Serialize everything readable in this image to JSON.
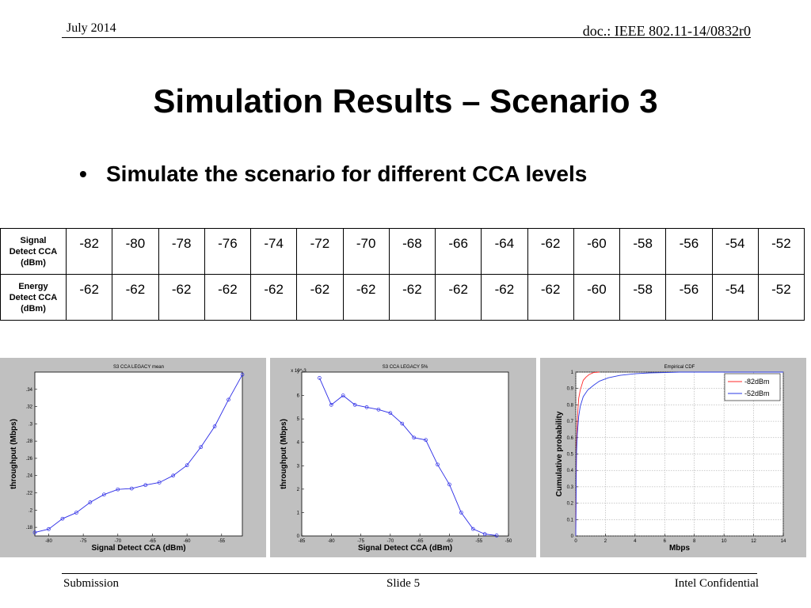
{
  "header": {
    "date": "July 2014",
    "doc_id": "doc.: IEEE 802.11-14/0832r0"
  },
  "slide": {
    "title": "Simulation Results – Scenario 3",
    "bullet": "Simulate the scenario for different CCA levels"
  },
  "table": {
    "rows": [
      {
        "label": [
          "Signal",
          "Detect CCA",
          "(dBm)"
        ],
        "values": [
          "-82",
          "-80",
          "-78",
          "-76",
          "-74",
          "-72",
          "-70",
          "-68",
          "-66",
          "-64",
          "-62",
          "-60",
          "-58",
          "-56",
          "-54",
          "-52"
        ]
      },
      {
        "label": [
          "Energy",
          "Detect CCA",
          "(dBm)"
        ],
        "values": [
          "-62",
          "-62",
          "-62",
          "-62",
          "-62",
          "-62",
          "-62",
          "-62",
          "-62",
          "-62",
          "-62",
          "-60",
          "-58",
          "-56",
          "-54",
          "-52"
        ]
      }
    ]
  },
  "chart_data": [
    {
      "type": "line",
      "title": "S3 CCA LEGACY mean",
      "xlabel": "Signal Detect CCA (dBm)",
      "ylabel": "throughput (Mbps)",
      "xlim": [
        -82,
        -52
      ],
      "ylim": [
        0.17,
        0.36
      ],
      "xticks": [
        -80,
        -75,
        -70,
        -65,
        -60,
        -55
      ],
      "yticks": [
        0.18,
        0.2,
        0.22,
        0.24,
        0.26,
        0.28,
        0.3,
        0.32,
        0.34
      ],
      "color": "#2a2ae6",
      "x": [
        -82,
        -80,
        -78,
        -76,
        -74,
        -72,
        -70,
        -68,
        -66,
        -64,
        -62,
        -60,
        -58,
        -56,
        -54,
        -52
      ],
      "y": [
        0.174,
        0.178,
        0.19,
        0.197,
        0.209,
        0.218,
        0.224,
        0.225,
        0.229,
        0.232,
        0.24,
        0.252,
        0.273,
        0.297,
        0.328,
        0.357
      ]
    },
    {
      "type": "line",
      "title": "S3 CCA LEGACY 5%",
      "xlabel": "Signal Detect CCA (dBm)",
      "ylabel": "throughput (Mbps)",
      "exponent": "x 10^-3",
      "xlim": [
        -85,
        -50
      ],
      "ylim": [
        0,
        7
      ],
      "xticks": [
        -85,
        -80,
        -75,
        -70,
        -65,
        -60,
        -55,
        -50
      ],
      "yticks": [
        0,
        1,
        2,
        3,
        4,
        5,
        6,
        7
      ],
      "color": "#2a2ae6",
      "x": [
        -82,
        -80,
        -78,
        -76,
        -74,
        -72,
        -70,
        -68,
        -66,
        -64,
        -62,
        -60,
        -58,
        -56,
        -54,
        -52
      ],
      "y": [
        6.75,
        5.6,
        6.0,
        5.6,
        5.5,
        5.4,
        5.25,
        4.8,
        4.2,
        4.1,
        3.05,
        2.2,
        1.0,
        0.3,
        0.08,
        0.02
      ]
    },
    {
      "type": "line",
      "title": "Empirical CDF",
      "xlabel": "Mbps",
      "ylabel": "Cumulative probability",
      "xlim": [
        0,
        14
      ],
      "ylim": [
        0,
        1
      ],
      "xticks": [
        0,
        2,
        4,
        6,
        8,
        10,
        12,
        14
      ],
      "yticks": [
        0,
        0.1,
        0.2,
        0.3,
        0.4,
        0.5,
        0.6,
        0.7,
        0.8,
        0.9,
        1
      ],
      "grid": true,
      "legend_position": "top-right",
      "series": [
        {
          "name": "-82dBm",
          "color": "#ff2a2a",
          "x": [
            0,
            0.02,
            0.05,
            0.1,
            0.15,
            0.2,
            0.3,
            0.4,
            0.5,
            0.7,
            0.9,
            1.2,
            1.6
          ],
          "y": [
            0,
            0.3,
            0.55,
            0.7,
            0.78,
            0.84,
            0.89,
            0.92,
            0.95,
            0.97,
            0.985,
            0.997,
            1.0
          ]
        },
        {
          "name": "-52dBm",
          "color": "#2a3ae6",
          "x": [
            0,
            0.02,
            0.05,
            0.1,
            0.2,
            0.3,
            0.5,
            0.8,
            1.2,
            1.6,
            2.2,
            3,
            4,
            5,
            6.3,
            7,
            14
          ],
          "y": [
            0,
            0.25,
            0.5,
            0.62,
            0.73,
            0.79,
            0.85,
            0.89,
            0.92,
            0.945,
            0.965,
            0.98,
            0.99,
            0.995,
            0.998,
            1.0,
            1.0
          ]
        }
      ]
    }
  ],
  "footer": {
    "left": "Submission",
    "center": "Slide 5",
    "right": "Intel Confidential"
  }
}
